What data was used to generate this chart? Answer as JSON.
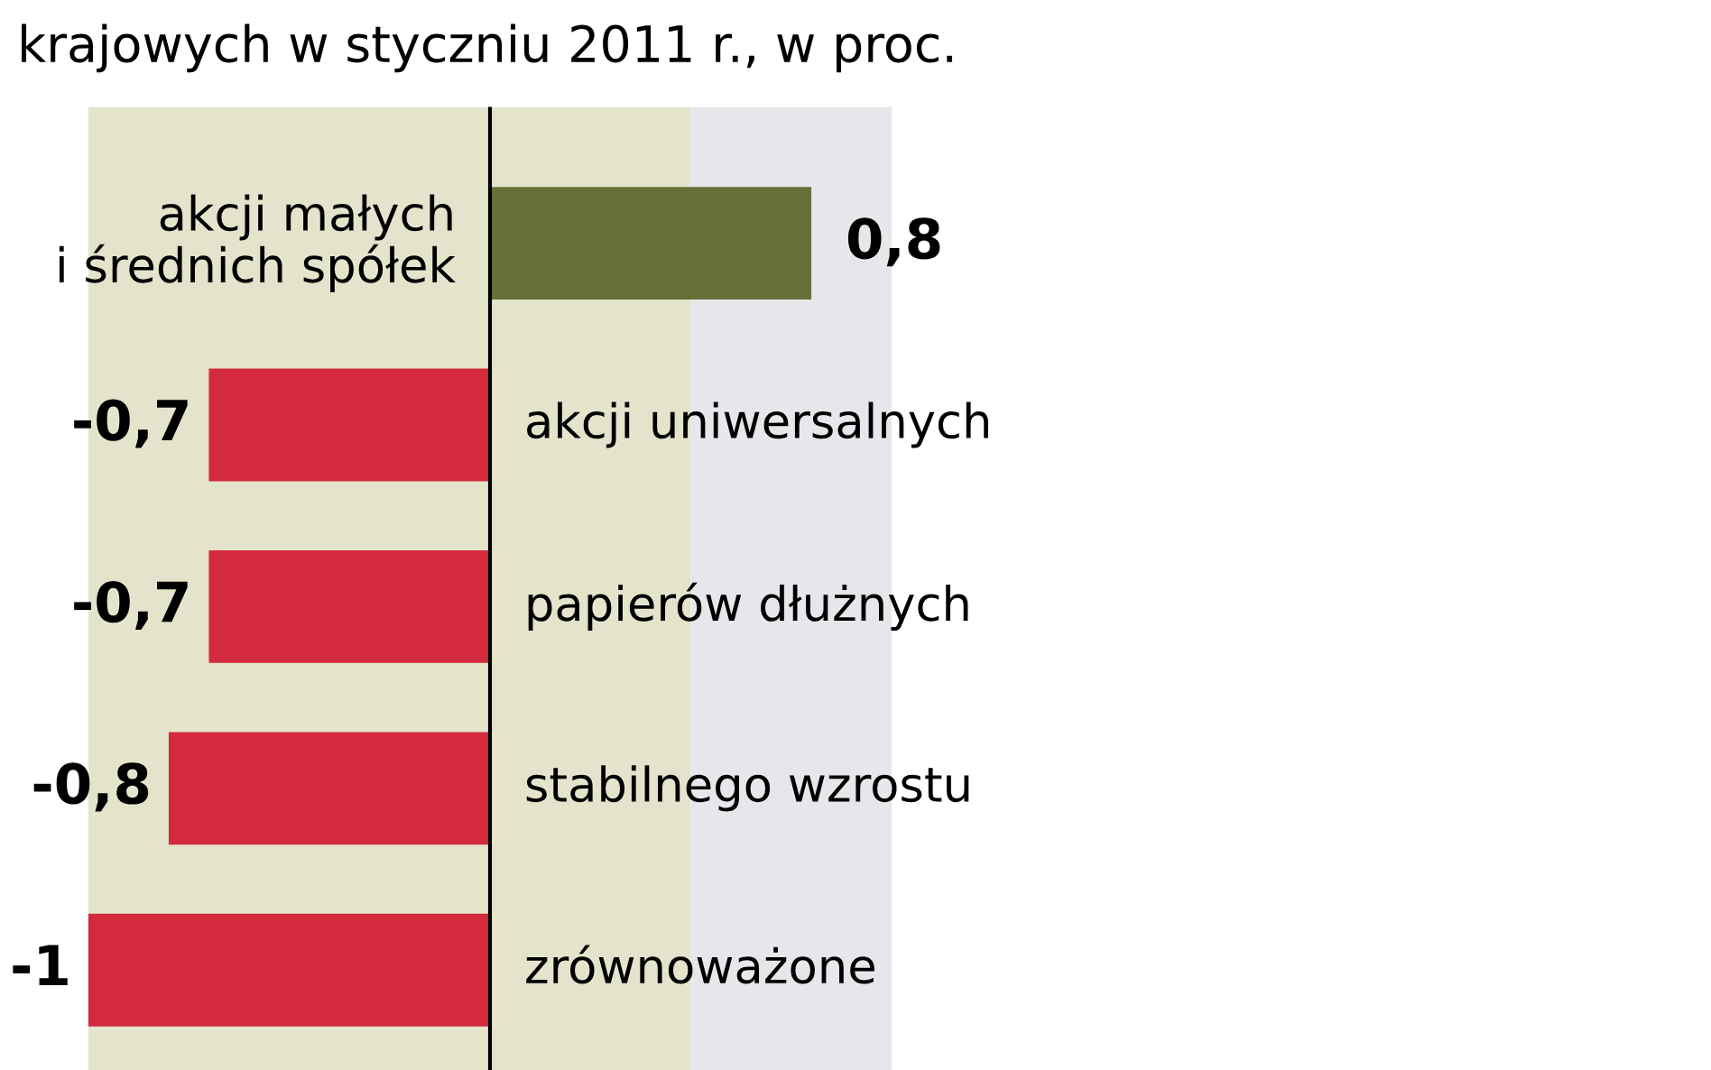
{
  "chart_data": {
    "type": "bar",
    "orientation": "horizontal",
    "title": "krajowych w styczniu 2011 r., w proc.",
    "categories": [
      "akcji małych\ni średnich spółek",
      "akcji uniwersalnych",
      "papierów dłużnych",
      "stabilnego wzrostu",
      "zrównoważone"
    ],
    "values": [
      0.8,
      -0.7,
      -0.7,
      -0.8,
      -1
    ],
    "colors": [
      "#68703a",
      "#d42a3e",
      "#d42a3e",
      "#d42a3e",
      "#d42a3e"
    ],
    "value_labels": [
      "0,8",
      "-0,7",
      "-0,7",
      "-0,8",
      "-1"
    ],
    "bands": [
      {
        "axis": "x",
        "from": -1,
        "to": 0.5,
        "color": "#e4e4cc"
      },
      {
        "axis": "x",
        "from": 0.5,
        "to": 1,
        "color": "#e6e7ea"
      }
    ]
  }
}
